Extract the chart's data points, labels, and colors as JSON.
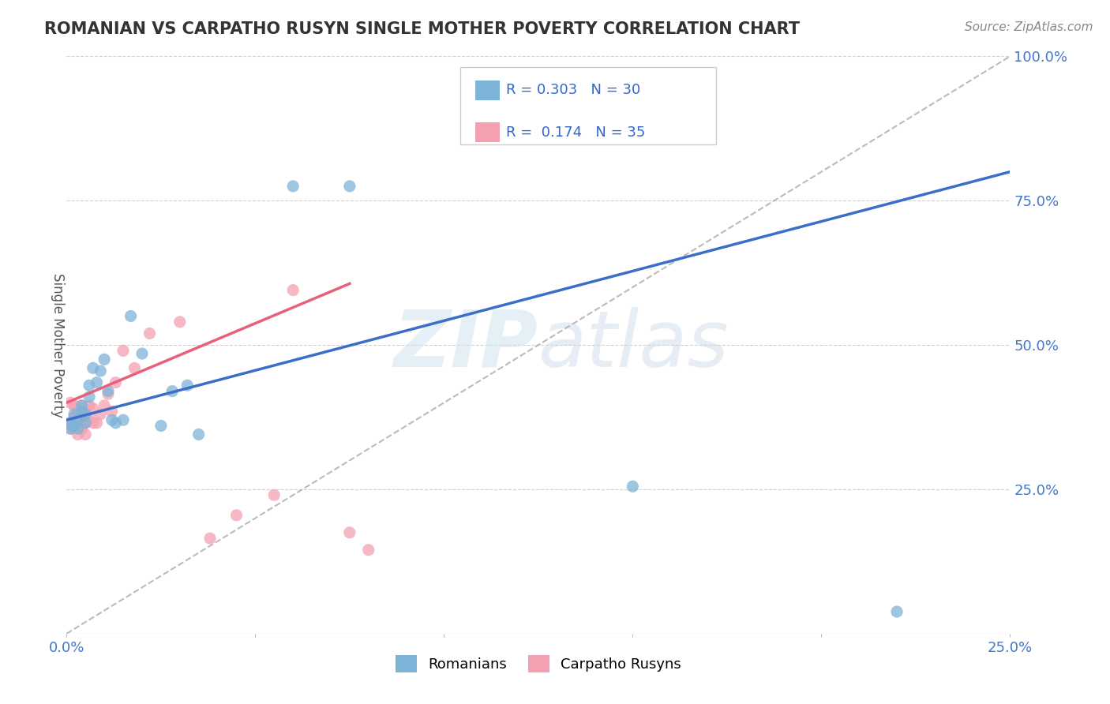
{
  "title": "ROMANIAN VS CARPATHO RUSYN SINGLE MOTHER POVERTY CORRELATION CHART",
  "source": "Source: ZipAtlas.com",
  "ylabel": "Single Mother Poverty",
  "xlim": [
    0,
    0.25
  ],
  "ylim": [
    0,
    1.0
  ],
  "xticks": [
    0.0,
    0.05,
    0.1,
    0.15,
    0.2,
    0.25
  ],
  "yticks": [
    0.0,
    0.25,
    0.5,
    0.75,
    1.0
  ],
  "xtick_labels": [
    "0.0%",
    "",
    "",
    "",
    "",
    "25.0%"
  ],
  "ytick_labels": [
    "",
    "25.0%",
    "50.0%",
    "75.0%",
    "100.0%"
  ],
  "romanian_R": 0.303,
  "romanian_N": 30,
  "carpatho_R": 0.174,
  "carpatho_N": 35,
  "romanian_color": "#7EB3D8",
  "carpatho_color": "#F4A0B0",
  "trend_romanian_color": "#3B6EC8",
  "trend_carpatho_color": "#E8607A",
  "watermark_zip": "ZIP",
  "watermark_atlas": "atlas",
  "romanian_x": [
    0.001,
    0.001,
    0.002,
    0.002,
    0.003,
    0.003,
    0.004,
    0.004,
    0.005,
    0.005,
    0.006,
    0.006,
    0.007,
    0.008,
    0.009,
    0.01,
    0.011,
    0.012,
    0.013,
    0.015,
    0.017,
    0.02,
    0.025,
    0.028,
    0.032,
    0.035,
    0.06,
    0.075,
    0.15,
    0.22
  ],
  "romanian_y": [
    0.355,
    0.365,
    0.36,
    0.38,
    0.355,
    0.37,
    0.385,
    0.395,
    0.365,
    0.38,
    0.41,
    0.43,
    0.46,
    0.435,
    0.455,
    0.475,
    0.42,
    0.37,
    0.365,
    0.37,
    0.55,
    0.485,
    0.36,
    0.42,
    0.43,
    0.345,
    0.775,
    0.775,
    0.255,
    0.038
  ],
  "carpatho_x": [
    0.001,
    0.001,
    0.001,
    0.002,
    0.002,
    0.002,
    0.003,
    0.003,
    0.003,
    0.004,
    0.004,
    0.004,
    0.005,
    0.005,
    0.005,
    0.006,
    0.006,
    0.007,
    0.007,
    0.008,
    0.009,
    0.01,
    0.011,
    0.012,
    0.013,
    0.015,
    0.018,
    0.022,
    0.03,
    0.038,
    0.045,
    0.055,
    0.06,
    0.075,
    0.08
  ],
  "carpatho_y": [
    0.355,
    0.365,
    0.4,
    0.355,
    0.375,
    0.395,
    0.345,
    0.365,
    0.385,
    0.355,
    0.375,
    0.395,
    0.345,
    0.365,
    0.38,
    0.375,
    0.395,
    0.365,
    0.39,
    0.365,
    0.38,
    0.395,
    0.415,
    0.385,
    0.435,
    0.49,
    0.46,
    0.52,
    0.54,
    0.165,
    0.205,
    0.24,
    0.595,
    0.175,
    0.145
  ],
  "background_color": "#FFFFFF",
  "grid_color": "#CCCCCC"
}
